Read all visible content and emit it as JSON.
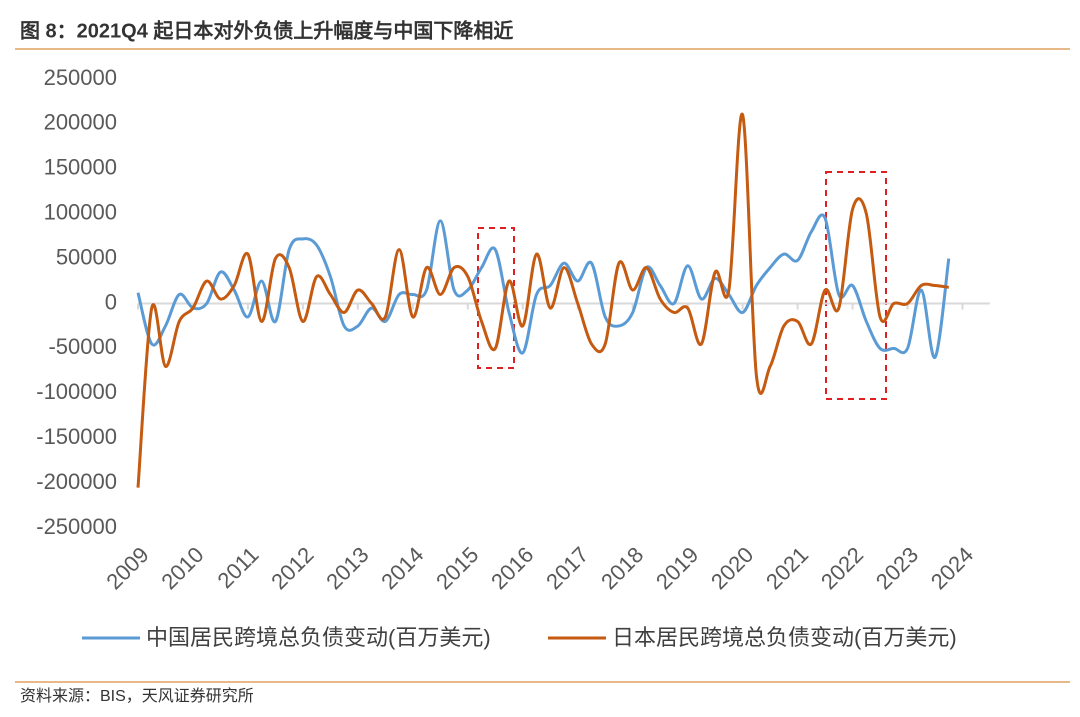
{
  "chart_data": {
    "type": "line",
    "title": "图 8：2021Q4 起日本对外负债上升幅度与中国下降相近",
    "source": "资料来源：BIS，天风证券研究所",
    "x": [
      2009,
      2009.25,
      2009.5,
      2009.75,
      2010,
      2010.25,
      2010.5,
      2010.75,
      2011,
      2011.25,
      2011.5,
      2011.75,
      2012,
      2012.25,
      2012.5,
      2012.75,
      2013,
      2013.25,
      2013.5,
      2013.75,
      2014,
      2014.25,
      2014.5,
      2014.75,
      2015,
      2015.25,
      2015.5,
      2015.75,
      2016,
      2016.25,
      2016.5,
      2016.75,
      2017,
      2017.25,
      2017.5,
      2017.75,
      2018,
      2018.25,
      2018.5,
      2018.75,
      2019,
      2019.25,
      2019.5,
      2019.75,
      2020,
      2020.25,
      2020.5,
      2020.75,
      2021,
      2021.25,
      2021.5,
      2021.75,
      2022,
      2022.25,
      2022.5,
      2022.75,
      2023,
      2023.25,
      2023.5,
      2023.75
    ],
    "series": [
      {
        "name": "中国居民跨境总负债变动(百万美元)",
        "color": "#5b9bd5",
        "values": [
          12000,
          -45000,
          -25000,
          10000,
          -5000,
          0,
          35000,
          15000,
          -15000,
          25000,
          -20000,
          60000,
          72000,
          65000,
          30000,
          -25000,
          -25000,
          -5000,
          -20000,
          10000,
          10000,
          15000,
          92000,
          15000,
          15000,
          40000,
          60000,
          -10000,
          -55000,
          10000,
          20000,
          45000,
          25000,
          45000,
          -15000,
          -25000,
          -10000,
          40000,
          20000,
          0,
          42000,
          5000,
          28000,
          10000,
          -10000,
          20000,
          40000,
          55000,
          48000,
          80000,
          95000,
          10000,
          20000,
          -20000,
          -50000,
          -50000,
          -50000,
          15000,
          -60000,
          50000
        ]
      },
      {
        "name": "日本居民跨境总负债变动(百万美元)",
        "color": "#c55a11",
        "values": [
          -205000,
          -5000,
          -70000,
          -20000,
          -5000,
          25000,
          5000,
          20000,
          55000,
          -20000,
          50000,
          40000,
          -20000,
          30000,
          10000,
          -10000,
          15000,
          0,
          -15000,
          60000,
          -15000,
          40000,
          10000,
          40000,
          30000,
          -20000,
          -50000,
          25000,
          -25000,
          55000,
          -5000,
          40000,
          0,
          -45000,
          -45000,
          45000,
          15000,
          40000,
          5000,
          -10000,
          -5000,
          -45000,
          35000,
          15000,
          210000,
          -80000,
          -70000,
          -25000,
          -20000,
          -45000,
          15000,
          -5000,
          105000,
          100000,
          -15000,
          0,
          0,
          20000,
          20000,
          18000
        ]
      }
    ],
    "xlim": [
      2009,
      2024.5
    ],
    "xticks": [
      2009,
      2010,
      2011,
      2012,
      2013,
      2014,
      2015,
      2016,
      2017,
      2018,
      2019,
      2020,
      2021,
      2022,
      2023,
      2024
    ],
    "ylim": [
      -250000,
      250000
    ],
    "yticks": [
      -250000,
      -200000,
      -150000,
      -100000,
      -50000,
      0,
      50000,
      100000,
      150000,
      200000,
      250000
    ]
  }
}
